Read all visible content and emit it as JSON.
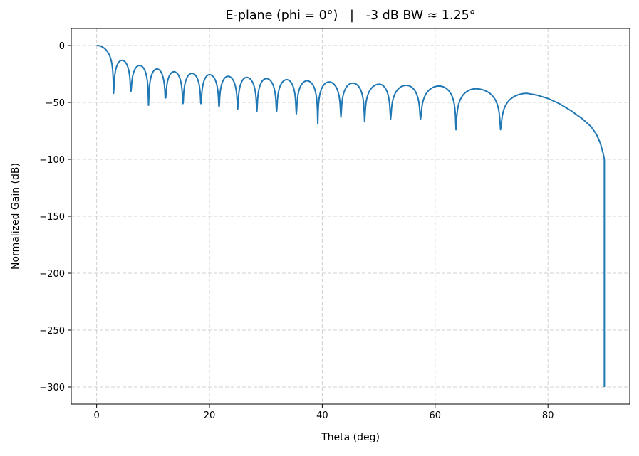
{
  "chart_data": {
    "type": "line",
    "title": "E-plane (phi = 0°)   |   -3 dB BW ≈ 1.25°",
    "xlabel": "Theta (deg)",
    "ylabel": "Normalized Gain (dB)",
    "xlim": [
      -4.5,
      94.5
    ],
    "ylim": [
      -315,
      15
    ],
    "xticks": [
      0,
      20,
      40,
      60,
      80
    ],
    "xtick_labels": [
      "0",
      "20",
      "40",
      "60",
      "80"
    ],
    "yticks": [
      0,
      -50,
      -100,
      -150,
      -200,
      -250,
      -300
    ],
    "ytick_labels": [
      "0",
      "−50",
      "−100",
      "−150",
      "−200",
      "−250",
      "−300"
    ],
    "grid": true,
    "line_color": "#1f77b4",
    "series": [
      {
        "main_lobe_peak": [
          0,
          0
        ],
        "nulls": [
          [
            3.0,
            -42
          ],
          [
            6.05,
            -40
          ],
          [
            9.2,
            -52.5
          ],
          [
            12.2,
            -46
          ],
          [
            15.3,
            -51
          ],
          [
            18.5,
            -51
          ],
          [
            21.7,
            -54
          ],
          [
            25.0,
            -56
          ],
          [
            28.4,
            -58
          ],
          [
            31.9,
            -58
          ],
          [
            35.4,
            -60
          ],
          [
            39.2,
            -69
          ],
          [
            43.3,
            -63
          ],
          [
            47.5,
            -67
          ],
          [
            52.1,
            -65
          ],
          [
            57.4,
            -65
          ],
          [
            63.7,
            -74
          ],
          [
            71.6,
            -74
          ]
        ],
        "sidelobe_peaks": [
          [
            4.5,
            -13
          ],
          [
            7.6,
            -17.5
          ],
          [
            10.7,
            -20.6
          ],
          [
            13.7,
            -23
          ],
          [
            16.9,
            -24.4
          ],
          [
            20.0,
            -25.6
          ],
          [
            23.3,
            -27
          ],
          [
            26.6,
            -28
          ],
          [
            30.1,
            -29
          ],
          [
            33.7,
            -30
          ],
          [
            37.3,
            -31
          ],
          [
            41.2,
            -32
          ],
          [
            45.4,
            -33
          ],
          [
            50.1,
            -34
          ],
          [
            54.9,
            -35
          ],
          [
            60.7,
            -35.6
          ],
          [
            67.2,
            -38
          ],
          [
            76.3,
            -42
          ]
        ],
        "tail": [
          [
            78,
            -43.5
          ],
          [
            80,
            -46.5
          ],
          [
            82,
            -51
          ],
          [
            84,
            -57
          ],
          [
            86,
            -64
          ],
          [
            87.6,
            -71
          ],
          [
            88.6,
            -78
          ],
          [
            89.3,
            -86
          ],
          [
            89.8,
            -95
          ],
          [
            90,
            -100
          ],
          [
            90,
            -300
          ]
        ]
      }
    ]
  }
}
